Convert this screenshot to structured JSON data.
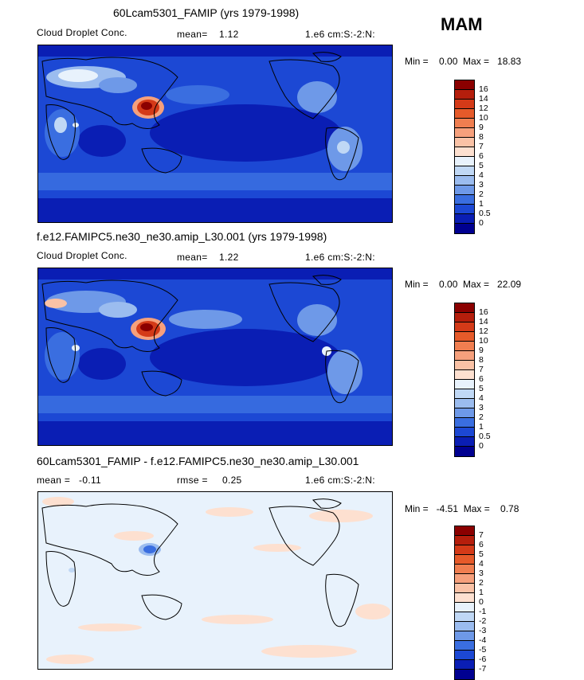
{
  "season": "MAM",
  "panels": [
    {
      "title": "60Lcam5301_FAMIP (yrs 1979-1998)",
      "variable": "Cloud Droplet Conc.",
      "stat": "mean=    1.12",
      "units": "1.e6 cm:S:-2:N:",
      "minmax": "Min =    0.00  Max =   18.83",
      "colorbar": {
        "labels": [
          "16",
          "14",
          "12",
          "10",
          "9",
          "8",
          "7",
          "6",
          "5",
          "4",
          "3",
          "2",
          "1",
          "0.5",
          "0"
        ],
        "colors": [
          "#8b0000",
          "#b51e0c",
          "#d43a18",
          "#e65a2a",
          "#f07e50",
          "#f6a07c",
          "#fac2a6",
          "#fde0d0",
          "#e8f2fc",
          "#c0d8f5",
          "#9bbcef",
          "#6e99e8",
          "#3a6ee0",
          "#1c48d4",
          "#0a1eb4",
          "#000090"
        ]
      }
    },
    {
      "title": "f.e12.FAMIPC5.ne30_ne30.amip_L30.001 (yrs 1979-1998)",
      "variable": "Cloud Droplet Conc.",
      "stat": "mean=    1.22",
      "units": "1.e6 cm:S:-2:N:",
      "minmax": "Min =    0.00  Max =   22.09",
      "colorbar": {
        "labels": [
          "16",
          "14",
          "12",
          "10",
          "9",
          "8",
          "7",
          "6",
          "5",
          "4",
          "3",
          "2",
          "1",
          "0.5",
          "0"
        ],
        "colors": [
          "#8b0000",
          "#b51e0c",
          "#d43a18",
          "#e65a2a",
          "#f07e50",
          "#f6a07c",
          "#fac2a6",
          "#fde0d0",
          "#e8f2fc",
          "#c0d8f5",
          "#9bbcef",
          "#6e99e8",
          "#3a6ee0",
          "#1c48d4",
          "#0a1eb4",
          "#000090"
        ]
      }
    },
    {
      "title": "60Lcam5301_FAMIP - f.e12.FAMIPC5.ne30_ne30.amip_L30.001",
      "variable": "mean =   -0.11",
      "stat": "rmse =     0.25",
      "units": "1.e6 cm:S:-2:N:",
      "minmax": "Min =   -4.51  Max =    0.78",
      "colorbar": {
        "labels": [
          "7",
          "6",
          "5",
          "4",
          "3",
          "2",
          "1",
          "0",
          "-1",
          "-2",
          "-3",
          "-4",
          "-5",
          "-6",
          "-7"
        ],
        "colors": [
          "#8b0000",
          "#b51e0c",
          "#d43a18",
          "#e65a2a",
          "#f07e50",
          "#f6a07c",
          "#fac2a6",
          "#fde0d0",
          "#e8f2fc",
          "#c0d8f5",
          "#9bbcef",
          "#6e99e8",
          "#3a6ee0",
          "#1c48d4",
          "#0a1eb4",
          "#000090"
        ]
      }
    }
  ],
  "chart_data": [
    {
      "type": "heatmap",
      "title": "60Lcam5301_FAMIP (yrs 1979-1998)",
      "variable": "Cloud Droplet Conc.",
      "units": "1.e6 cm:S:-2:N:",
      "mean": 1.12,
      "min": 0.0,
      "max": 18.83,
      "levels": [
        0,
        0.5,
        1,
        2,
        3,
        4,
        5,
        6,
        7,
        8,
        9,
        10,
        12,
        14,
        16
      ],
      "projection": "global cylindrical equidistant, 0-360 longitude, Pacific-centred",
      "hotspots": [
        {
          "region": "Eastern China",
          "level": ">16"
        },
        {
          "region": "Central Asia / Middle East",
          "level": "5-8"
        }
      ]
    },
    {
      "type": "heatmap",
      "title": "f.e12.FAMIPC5.ne30_ne30.amip_L30.001 (yrs 1979-1998)",
      "variable": "Cloud Droplet Conc.",
      "units": "1.e6 cm:S:-2:N:",
      "mean": 1.22,
      "min": 0.0,
      "max": 22.09,
      "levels": [
        0,
        0.5,
        1,
        2,
        3,
        4,
        5,
        6,
        7,
        8,
        9,
        10,
        12,
        14,
        16
      ],
      "hotspots": [
        {
          "region": "Eastern China",
          "level": ">16"
        },
        {
          "region": "Middle East",
          "level": "7-10"
        }
      ]
    },
    {
      "type": "heatmap",
      "title": "60Lcam5301_FAMIP - f.e12.FAMIPC5.ne30_ne30.amip_L30.001",
      "units": "1.e6 cm:S:-2:N:",
      "mean": -0.11,
      "rmse": 0.25,
      "min": -4.51,
      "max": 0.78,
      "levels": [
        -7,
        -6,
        -5,
        -4,
        -3,
        -2,
        -1,
        0,
        1,
        2,
        3,
        4,
        5,
        6,
        7
      ],
      "hotspots": [
        {
          "region": "Eastern China",
          "level": "-4 to -5"
        }
      ]
    }
  ]
}
